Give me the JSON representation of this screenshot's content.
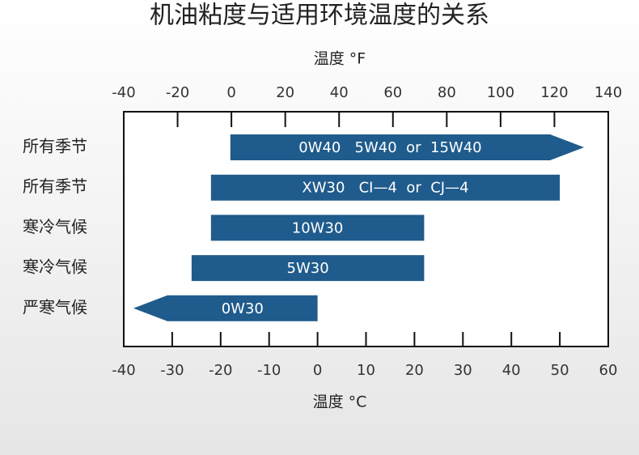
{
  "chart_data": {
    "type": "range-bar",
    "title": "机油粘度与适用环境温度的关系",
    "xlabel": "温度 °C",
    "x2label": "温度 °F",
    "xlim": [
      -40,
      60
    ],
    "xticks": [
      -40,
      -30,
      -20,
      -10,
      0,
      10,
      20,
      30,
      40,
      50,
      60
    ],
    "x2lim": [
      -40,
      140
    ],
    "x2ticks": [
      -40,
      -20,
      0,
      20,
      40,
      60,
      80,
      100,
      120,
      140
    ],
    "color": "#1f5b8c",
    "bars": [
      {
        "category": "所有季节",
        "label": "0W40   5W40  or  15W40",
        "low": -18,
        "high": 55,
        "arrow": "right"
      },
      {
        "category": "所有季节",
        "label": "XW30   CI—4  or  CJ—4",
        "low": -22,
        "high": 50,
        "arrow": "none"
      },
      {
        "category": "寒冷气候",
        "label": "10W30",
        "low": -22,
        "high": 22,
        "arrow": "none"
      },
      {
        "category": "寒冷气候",
        "label": "5W30",
        "low": -26,
        "high": 22,
        "arrow": "none"
      },
      {
        "category": "严寒气候",
        "label": "0W30",
        "low": -38,
        "high": 0,
        "arrow": "left"
      }
    ]
  }
}
